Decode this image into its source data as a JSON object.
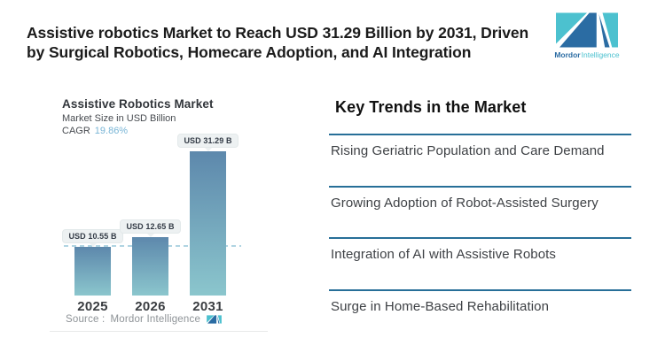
{
  "page": {
    "headline_line1": "Assistive robotics Market to Reach USD 31.29 Billion by 2031, Driven",
    "headline_line2": "by Surgical Robotics, Homecare Adoption, and AI Integration"
  },
  "brand": {
    "name_bold": "Mordor",
    "name_light": "Intelligence"
  },
  "chart_data": {
    "type": "bar",
    "title": "Assistive Robotics Market",
    "subtitle": "Market Size in USD Billion",
    "cagr_label": "CAGR",
    "cagr_value": "19.86%",
    "categories": [
      "2025",
      "2026",
      "2031"
    ],
    "values": [
      10.55,
      12.65,
      31.29
    ],
    "value_labels": [
      "USD 10.55 B",
      "USD 12.65 B",
      "USD 31.29 B"
    ],
    "unit": "USD Billion",
    "ylim": [
      0,
      35
    ],
    "reference_line": "dashed horizontal line at 2025 value (10.55)",
    "legend": "none",
    "source_label": "Source :",
    "source_value": "Mordor Intelligence"
  },
  "trends": {
    "heading": "Key Trends in the Market",
    "items": [
      "Rising Geriatric Population and Care Demand",
      "Growing Adoption of Robot-Assisted Surgery",
      "Integration of AI with Assistive Robots",
      "Surge in Home-Based Rehabilitation"
    ]
  },
  "colors": {
    "navy": "#2b6ca3",
    "teal": "#4cc1cf",
    "lightblue": "#79b5d6",
    "barTop": "#5d88ac",
    "barBottom": "#8bc6cd",
    "dash": "#b0d4e2",
    "line": "#276f98"
  }
}
